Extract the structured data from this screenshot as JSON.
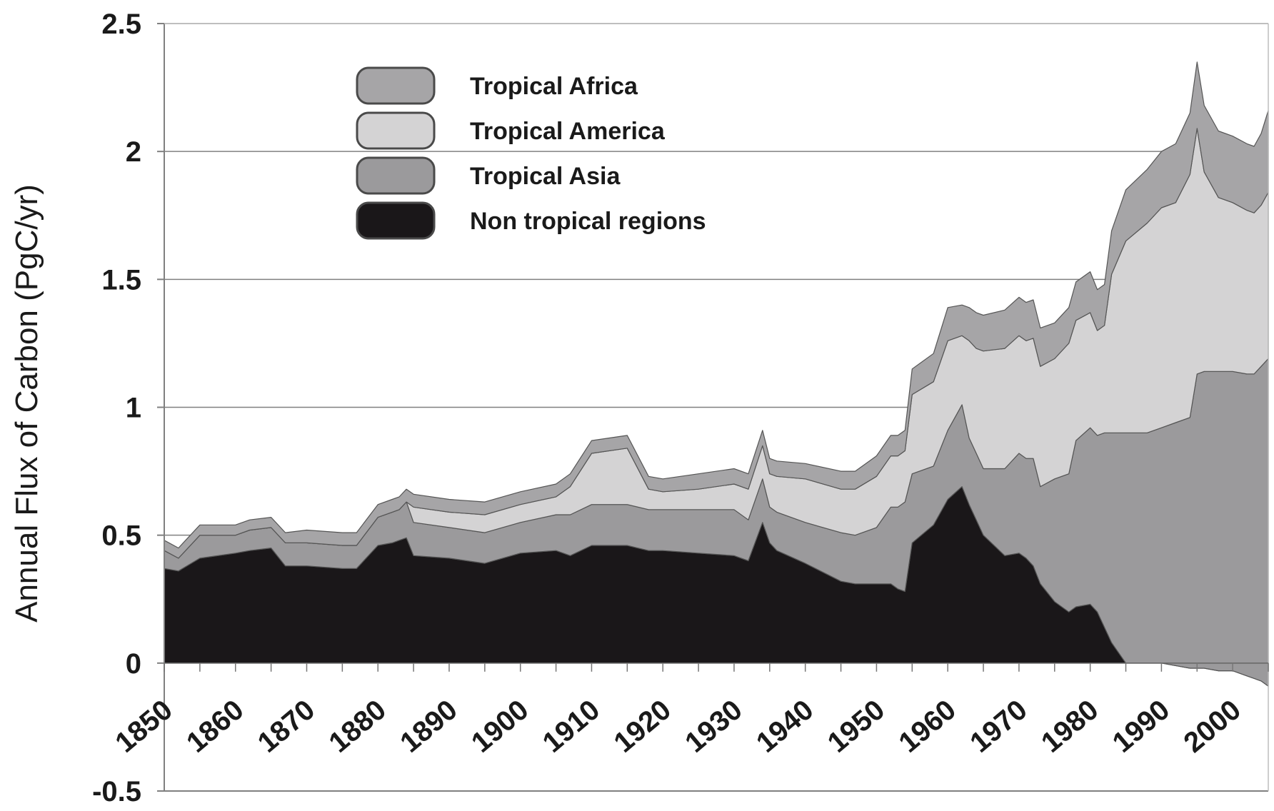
{
  "chart_data": {
    "type": "area",
    "stacked": true,
    "title": "",
    "xlabel": "",
    "ylabel": "Annual Flux of Carbon (PgC/yr)",
    "xlim": [
      1850,
      2005
    ],
    "ylim": [
      -0.5,
      2.5
    ],
    "x_ticks": [
      1850,
      1860,
      1870,
      1880,
      1890,
      1900,
      1910,
      1920,
      1930,
      1940,
      1950,
      1960,
      1970,
      1980,
      1990,
      2000
    ],
    "x_tick_labels": [
      "1850",
      "1860",
      "1870",
      "1880",
      "1890",
      "1900",
      "1910",
      "1920",
      "1930",
      "1940",
      "1950",
      "1960",
      "1970",
      "1980",
      "1990",
      "2000"
    ],
    "y_ticks": [
      -0.5,
      0,
      0.5,
      1,
      1.5,
      2,
      2.5
    ],
    "y_tick_labels": [
      "-0.5",
      "0",
      "0.5",
      "1",
      "1.5",
      "2",
      "2.5"
    ],
    "grid": "horizontal",
    "legend_position": "top-left",
    "x": [
      1850,
      1852,
      1855,
      1860,
      1862,
      1865,
      1867,
      1870,
      1875,
      1877,
      1880,
      1882,
      1883,
      1884,
      1885,
      1890,
      1895,
      1900,
      1905,
      1907,
      1910,
      1915,
      1918,
      1920,
      1925,
      1930,
      1932,
      1934,
      1935,
      1936,
      1940,
      1945,
      1947,
      1950,
      1952,
      1953,
      1954,
      1955,
      1958,
      1960,
      1962,
      1963,
      1964,
      1965,
      1968,
      1970,
      1971,
      1972,
      1973,
      1975,
      1977,
      1978,
      1980,
      1981,
      1982,
      1983,
      1985,
      1988,
      1990,
      1992,
      1994,
      1995,
      1996,
      1998,
      2000,
      2002,
      2003,
      2004,
      2005
    ],
    "series": [
      {
        "name": "Non tropical regions",
        "color": "#1a1719",
        "values": [
          0.37,
          0.36,
          0.41,
          0.43,
          0.44,
          0.45,
          0.38,
          0.38,
          0.37,
          0.37,
          0.46,
          0.47,
          0.48,
          0.49,
          0.42,
          0.41,
          0.39,
          0.43,
          0.44,
          0.42,
          0.46,
          0.46,
          0.44,
          0.44,
          0.43,
          0.42,
          0.4,
          0.55,
          0.47,
          0.44,
          0.39,
          0.32,
          0.31,
          0.31,
          0.31,
          0.29,
          0.28,
          0.47,
          0.54,
          0.64,
          0.69,
          0.62,
          0.56,
          0.5,
          0.42,
          0.43,
          0.41,
          0.38,
          0.31,
          0.24,
          0.2,
          0.22,
          0.23,
          0.2,
          0.14,
          0.08,
          0.0,
          0.0,
          0.0,
          -0.01,
          -0.02,
          -0.02,
          -0.02,
          -0.03,
          -0.03,
          -0.05,
          -0.06,
          -0.07,
          -0.09
        ]
      },
      {
        "name": "Tropical Asia",
        "color": "#9b9a9c",
        "values": [
          0.07,
          0.05,
          0.09,
          0.07,
          0.08,
          0.08,
          0.09,
          0.09,
          0.09,
          0.09,
          0.11,
          0.12,
          0.12,
          0.14,
          0.13,
          0.12,
          0.12,
          0.12,
          0.14,
          0.16,
          0.16,
          0.16,
          0.16,
          0.16,
          0.17,
          0.18,
          0.16,
          0.17,
          0.14,
          0.15,
          0.16,
          0.19,
          0.19,
          0.22,
          0.3,
          0.32,
          0.35,
          0.27,
          0.23,
          0.27,
          0.32,
          0.26,
          0.26,
          0.26,
          0.34,
          0.39,
          0.39,
          0.42,
          0.38,
          0.48,
          0.54,
          0.65,
          0.69,
          0.69,
          0.76,
          0.82,
          0.9,
          0.9,
          0.92,
          0.95,
          0.98,
          1.15,
          1.16,
          1.17,
          1.17,
          1.18,
          1.19,
          1.23,
          1.28
        ]
      },
      {
        "name": "Tropical America",
        "color": "#d4d3d4",
        "values": [
          0.0,
          0.0,
          0.0,
          0.0,
          0.0,
          0.0,
          0.0,
          0.0,
          0.0,
          0.0,
          0.0,
          0.0,
          0.0,
          0.0,
          0.06,
          0.06,
          0.07,
          0.07,
          0.07,
          0.11,
          0.2,
          0.22,
          0.08,
          0.07,
          0.08,
          0.1,
          0.12,
          0.13,
          0.13,
          0.14,
          0.17,
          0.17,
          0.18,
          0.2,
          0.2,
          0.2,
          0.2,
          0.31,
          0.33,
          0.35,
          0.27,
          0.38,
          0.41,
          0.46,
          0.47,
          0.46,
          0.46,
          0.47,
          0.47,
          0.47,
          0.51,
          0.47,
          0.45,
          0.41,
          0.42,
          0.62,
          0.75,
          0.82,
          0.86,
          0.86,
          0.95,
          0.96,
          0.78,
          0.68,
          0.66,
          0.64,
          0.63,
          0.63,
          0.65
        ]
      },
      {
        "name": "Tropical Africa",
        "color": "#a6a5a7",
        "values": [
          0.04,
          0.04,
          0.04,
          0.04,
          0.04,
          0.04,
          0.04,
          0.05,
          0.05,
          0.05,
          0.05,
          0.05,
          0.05,
          0.05,
          0.05,
          0.05,
          0.05,
          0.05,
          0.05,
          0.05,
          0.05,
          0.05,
          0.05,
          0.05,
          0.06,
          0.06,
          0.06,
          0.06,
          0.06,
          0.06,
          0.06,
          0.07,
          0.07,
          0.08,
          0.08,
          0.08,
          0.08,
          0.1,
          0.11,
          0.13,
          0.12,
          0.13,
          0.14,
          0.14,
          0.15,
          0.15,
          0.15,
          0.15,
          0.15,
          0.14,
          0.14,
          0.15,
          0.16,
          0.16,
          0.16,
          0.17,
          0.2,
          0.21,
          0.22,
          0.23,
          0.24,
          0.26,
          0.26,
          0.26,
          0.26,
          0.26,
          0.26,
          0.28,
          0.32
        ]
      }
    ]
  },
  "legend": {
    "items": [
      {
        "label": "Tropical Africa",
        "color": "#a6a5a7"
      },
      {
        "label": "Tropical America",
        "color": "#d4d3d4"
      },
      {
        "label": "Tropical Asia",
        "color": "#9b9a9c"
      },
      {
        "label": "Non tropical regions",
        "color": "#1a1719"
      }
    ]
  }
}
